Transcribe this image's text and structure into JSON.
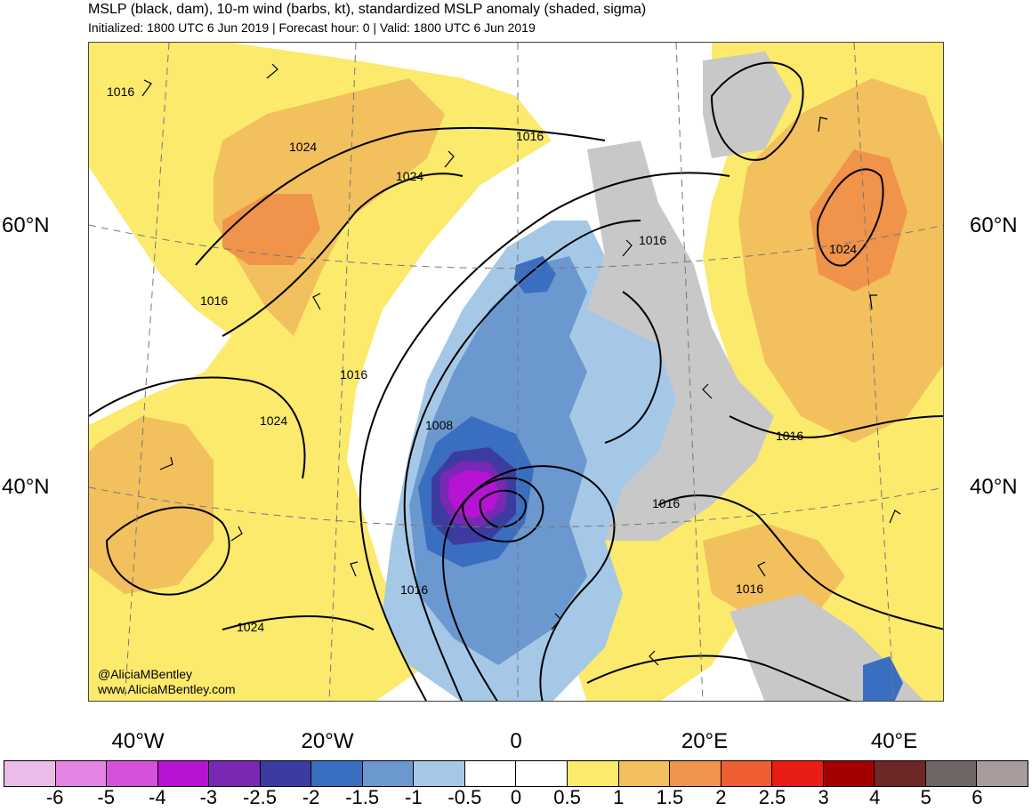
{
  "header": {
    "title": "MSLP (black, dam), 10-m wind (barbs, kt), standardized MSLP anomaly (shaded, sigma)",
    "subtitle": "Initialized: 1800 UTC 6 Jun 2019 | Forecast hour: 0 | Valid: 1800 UTC 6 Jun 2019"
  },
  "map": {
    "lat_labels": {
      "left_60": "60°N",
      "right_60": "60°N",
      "left_40": "40°N",
      "right_40": "40°N"
    },
    "lon_labels": [
      "40°W",
      "20°W",
      "0",
      "20°E",
      "40°E"
    ],
    "contour_labels": [
      "1016",
      "1024",
      "1024",
      "1016",
      "1016",
      "1024",
      "1016",
      "1016",
      "1024",
      "1008",
      "1016",
      "1016",
      "1016",
      "1016",
      "1024"
    ],
    "credits": {
      "handle": "@AliciaMBentley",
      "website": "www.AliciaMBentley.com"
    }
  },
  "colorbar": {
    "colors": [
      "#ecbce8",
      "#e483e4",
      "#d750dc",
      "#b514d2",
      "#7928b4",
      "#3c3ca0",
      "#3a6ec1",
      "#6c98d0",
      "#a5c8e7",
      "#ffffff",
      "#ffffff",
      "#fbea6c",
      "#f2c05d",
      "#f0934b",
      "#ef5d33",
      "#e91d14",
      "#a30002",
      "#6d2726",
      "#6e6664",
      "#a79c9b"
    ],
    "labels": [
      "-6",
      "-5",
      "-4",
      "-3",
      "-2.5",
      "-2",
      "-1.5",
      "-1",
      "-0.5",
      "0",
      "0.5",
      "1",
      "1.5",
      "2",
      "2.5",
      "3",
      "4",
      "5",
      "6"
    ]
  }
}
